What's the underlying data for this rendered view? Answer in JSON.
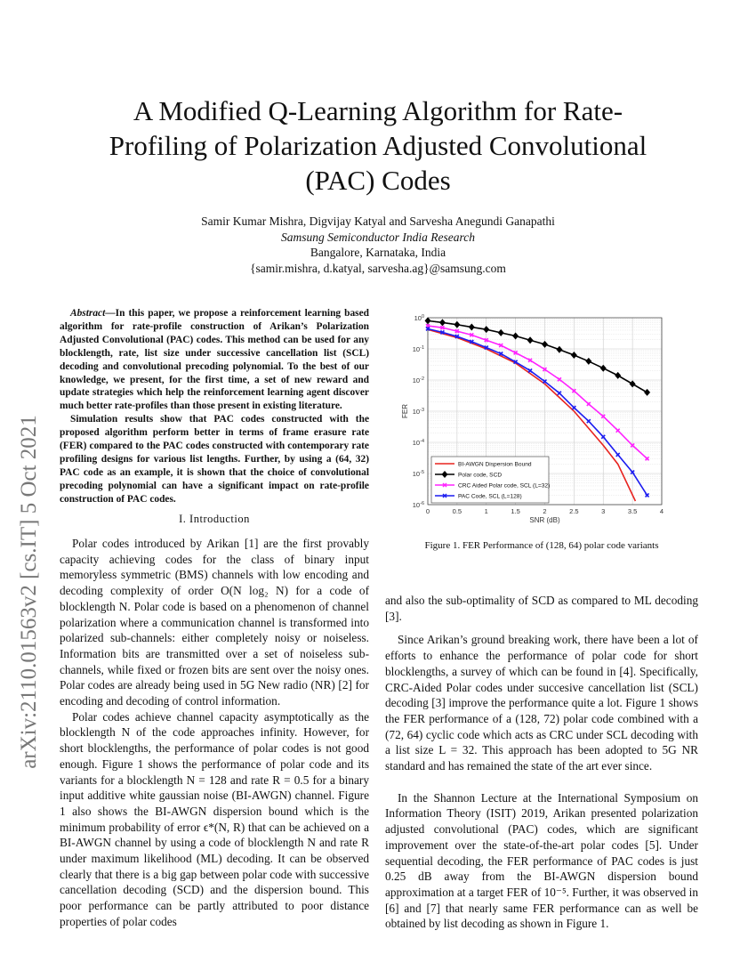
{
  "title": "A Modified Q-Learning Algorithm for Rate-Profiling of Polarization Adjusted Convolutional (PAC) Codes",
  "authors": {
    "names": "Samir Kumar Mishra, Digvijay Katyal and Sarvesha Anegundi Ganapathi",
    "affiliation": "Samsung Semiconductor India Research",
    "location": "Bangalore, Karnataka, India",
    "emails": "{samir.mishra, d.katyal, sarvesha.ag}@samsung.com"
  },
  "arxiv_stamp": "arXiv:2110.01563v2  [cs.IT]  5 Oct 2021",
  "abstract": {
    "label": "Abstract",
    "p1": "—In this paper, we propose a reinforcement learning based algorithm for rate-profile construction of Arikan’s Polarization Adjusted Convolutional (PAC) codes. This method can be used for any blocklength, rate, list size under successive cancellation list (SCL) decoding and convolutional precoding polynomial. To the best of our knowledge, we present, for the first time, a set of new reward and update strategies which help the reinforcement learning agent discover much better rate-profiles than those present in existing literature.",
    "p2": "Simulation results show that PAC codes constructed with the proposed algorithm perform better in terms of frame erasure rate (FER) compared to the PAC codes constructed with contemporary rate profiling designs for various list lengths. Further, by using a (64, 32) PAC code as an example, it is shown that the choice of convolutional precoding polynomial can have a significant impact on rate-profile construction of PAC codes."
  },
  "section_heading": "I. Introduction",
  "left_paragraphs": [
    "Polar codes introduced by Arikan [1] are the first provably capacity achieving codes for the class of binary input memoryless symmetric (BMS) channels with low encoding and decoding complexity of order O(N log₂ N) for a code of blocklength N. Polar code is based on a phenomenon of channel polarization where a communication channel is transformed into polarized sub-channels: either completely noisy or noiseless. Information bits are transmitted over a set of noiseless sub-channels, while fixed or frozen bits are sent over the noisy ones. Polar codes are already being used in 5G New radio (NR) [2] for encoding and decoding of control information.",
    "Polar codes achieve channel capacity asymptotically as the blocklength N of the code approaches infinity. However, for short blocklengths, the performance of polar codes is not good enough. Figure 1 shows the performance of polar code and its variants for a blocklength N = 128 and rate R = 0.5 for a binary input additive white gaussian noise (BI-AWGN) channel. Figure 1 also shows the BI-AWGN dispersion bound which is the minimum probability of error ϵ*(N, R) that can be achieved on a BI-AWGN channel by using a code of blocklength N and rate R under maximum likelihood (ML) decoding. It can be observed clearly that there is a big gap between polar code with successive cancellation decoding (SCD) and the dispersion bound. This poor performance can be partly attributed to poor distance properties of polar codes"
  ],
  "right_paragraphs": [
    "and also the sub-optimality of SCD as compared to ML decoding [3].",
    "Since Arikan’s ground breaking work, there have been a lot of efforts to enhance the performance of polar code for short blocklengths, a survey of which can be found in [4]. Specifically, CRC-Aided Polar codes under succesive cancellation list (SCL) decoding [3] improve the performance quite a lot. Figure 1 shows the FER performance of a (128, 72) polar code combined with a (72, 64) cyclic code which acts as CRC under SCL decoding with a list size L = 32. This approach has been adopted to 5G NR standard and has remained the state of the art ever since.",
    "In the Shannon Lecture at the International Symposium on Information Theory (ISIT) 2019, Arikan presented polarization adjusted convolutional (PAC) codes, which are significant improvement over the state-of-the-art polar codes [5]. Under sequential decoding, the FER performance of PAC codes is just 0.25 dB away from the BI-AWGN dispersion bound approximation at a target FER of 10⁻⁵. Further, it was observed in [6] and [7] that nearly same FER performance can as well be obtained by list decoding as shown in Figure 1."
  ],
  "figure_caption": "Figure 1.  FER Performance of (128, 64) polar code variants",
  "chart_data": {
    "type": "line",
    "xlabel": "SNR (dB)",
    "ylabel": "FER",
    "xlim": [
      0,
      4
    ],
    "ylim": [
      1e-06,
      1
    ],
    "yscale": "log",
    "grid": true,
    "legend_position": "bottom-left",
    "xticks": [
      "0",
      "0.5",
      "1",
      "1.5",
      "2",
      "2.5",
      "3",
      "3.5",
      "4"
    ],
    "yticks": [
      "10^0",
      "10^-1",
      "10^-2",
      "10^-3",
      "10^-4",
      "10^-5",
      "10^-6"
    ],
    "series": [
      {
        "name": "BI-AWGN Dispersion Bound",
        "color": "#e8231f",
        "marker": "none",
        "x": [
          0,
          0.5,
          1,
          1.5,
          2,
          2.5,
          3,
          3.25,
          3.55
        ],
        "y": [
          0.42,
          0.23,
          0.1,
          0.035,
          0.0075,
          0.001,
          8e-05,
          2e-05,
          1.3e-06
        ]
      },
      {
        "name": "Polar code, SCD",
        "color": "#000000",
        "marker": "diamond",
        "x": [
          0,
          0.25,
          0.5,
          0.75,
          1,
          1.25,
          1.5,
          1.75,
          2,
          2.25,
          2.5,
          2.75,
          3,
          3.25,
          3.5,
          3.75
        ],
        "y": [
          0.8,
          0.7,
          0.6,
          0.5,
          0.42,
          0.33,
          0.26,
          0.19,
          0.14,
          0.095,
          0.063,
          0.04,
          0.024,
          0.014,
          0.0075,
          0.004
        ]
      },
      {
        "name": "CRC Aided Polar code, SCL (L=32)",
        "color": "#ff22ff",
        "marker": "x",
        "x": [
          0,
          0.25,
          0.5,
          0.75,
          1,
          1.25,
          1.5,
          1.75,
          2,
          2.25,
          2.5,
          2.75,
          3,
          3.25,
          3.5,
          3.75
        ],
        "y": [
          0.55,
          0.48,
          0.37,
          0.28,
          0.19,
          0.13,
          0.075,
          0.043,
          0.022,
          0.0105,
          0.0045,
          0.0017,
          0.00068,
          0.00024,
          8e-05,
          3e-05
        ]
      },
      {
        "name": "PAC Code, SCL (L=128)",
        "color": "#1c1cf0",
        "marker": "x",
        "x": [
          0,
          0.25,
          0.5,
          0.75,
          1,
          1.25,
          1.5,
          1.75,
          2,
          2.25,
          2.5,
          2.75,
          3,
          3.25,
          3.5,
          3.75
        ],
        "y": [
          0.44,
          0.34,
          0.25,
          0.17,
          0.11,
          0.07,
          0.038,
          0.02,
          0.009,
          0.0038,
          0.0013,
          0.00048,
          0.00015,
          4e-05,
          1.1e-05,
          2e-06
        ]
      }
    ]
  }
}
